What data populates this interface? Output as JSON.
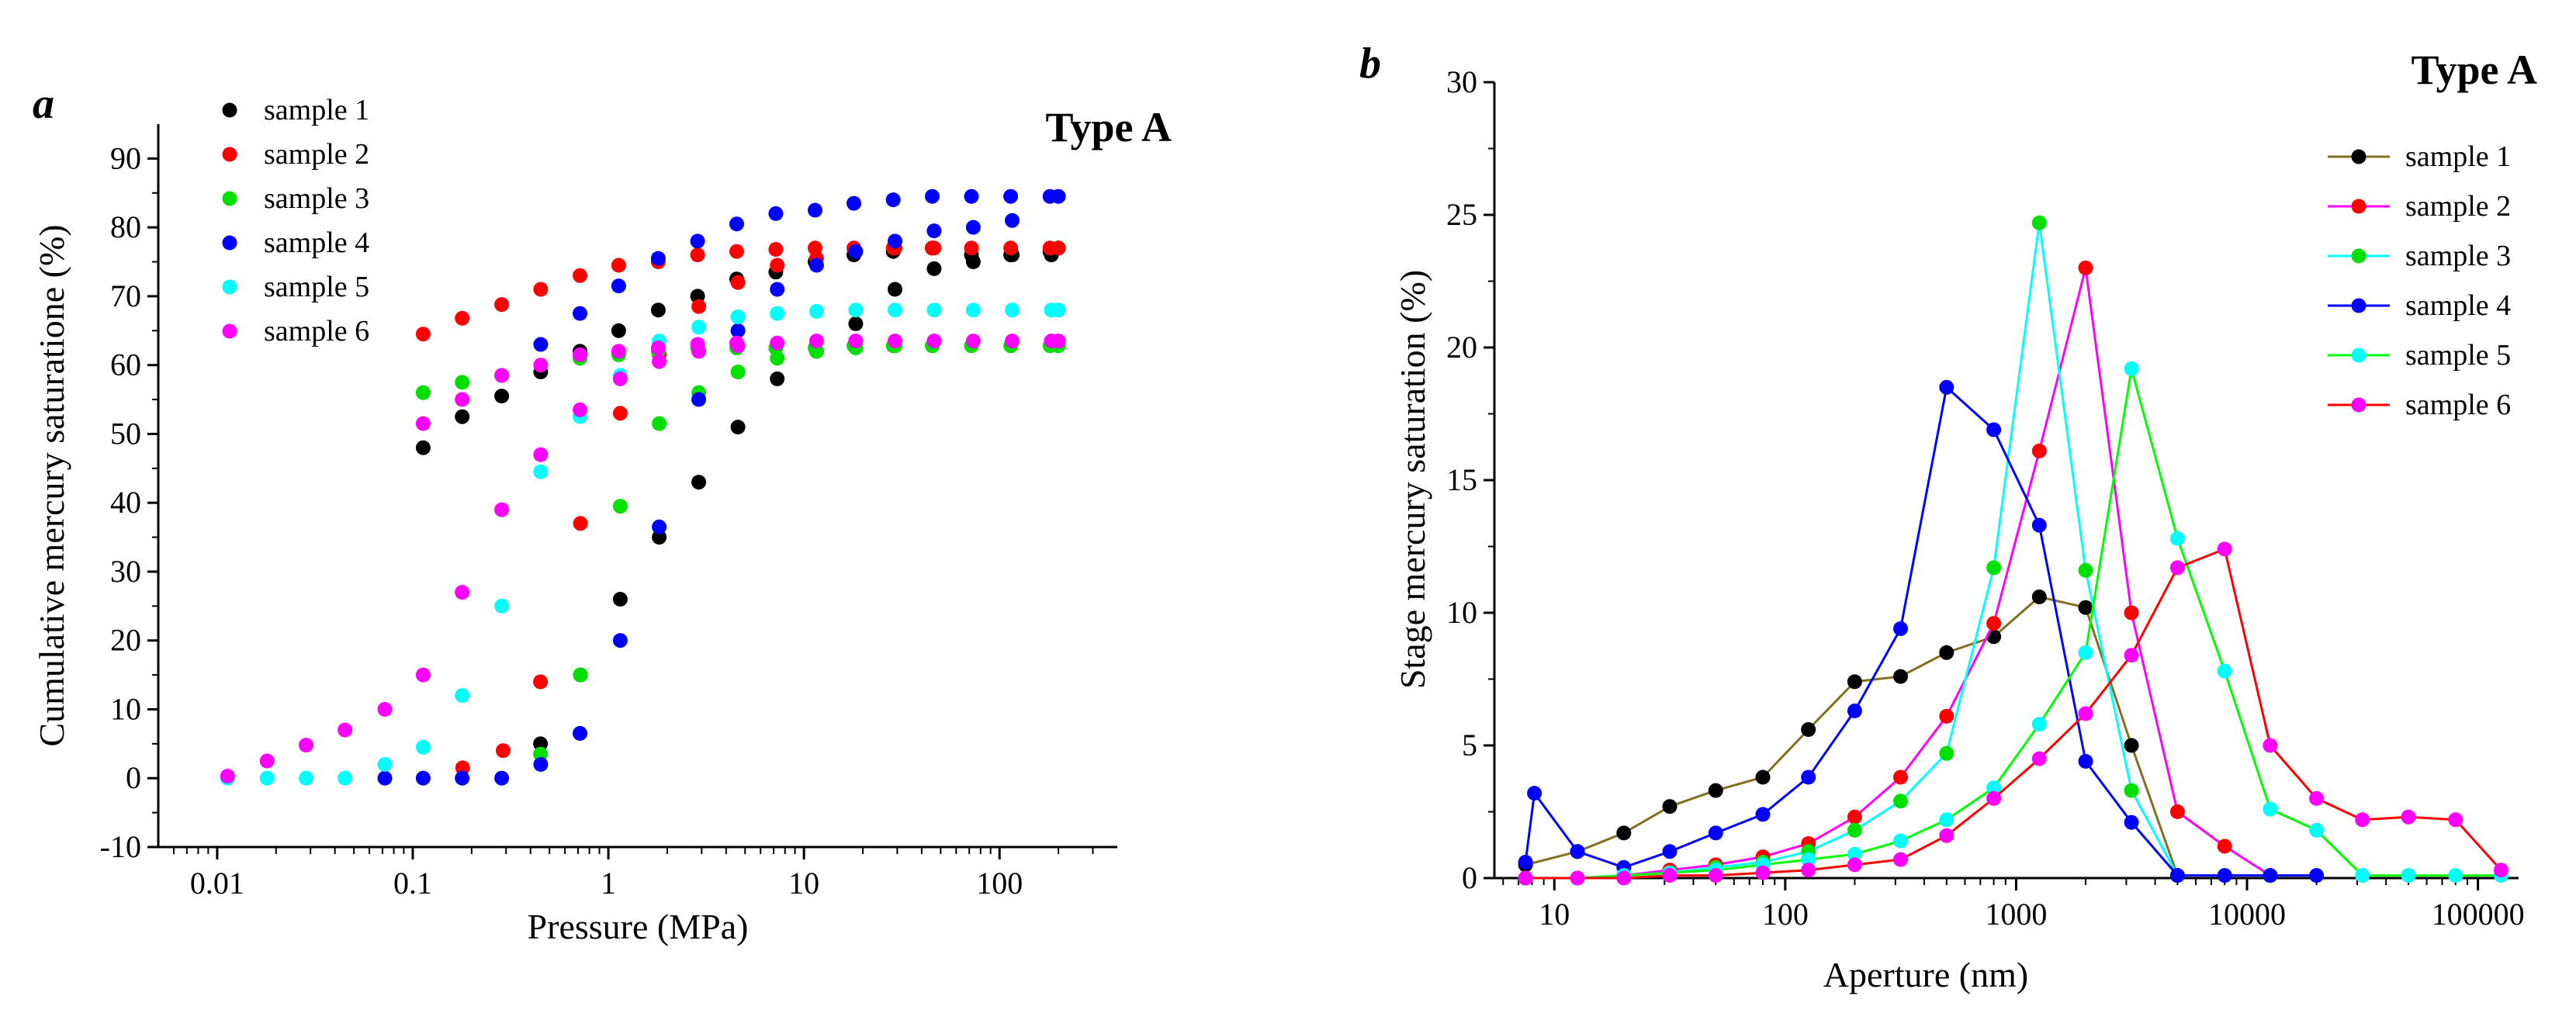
{
  "chart_data": [
    {
      "panel": "a",
      "type": "scatter",
      "annotation": "Type A",
      "xlabel": "Pressure (MPa)",
      "ylabel": "Cumulative  mercury saturatione (%)",
      "xscale": "log",
      "xlim": [
        0.005,
        400
      ],
      "ylim": [
        -10,
        95
      ],
      "xticks": [
        0.01,
        0.1,
        1,
        10,
        100
      ],
      "xtick_labels": [
        "0.01",
        "0.1",
        "1",
        "10",
        "100"
      ],
      "yticks": [
        -10,
        0,
        10,
        20,
        30,
        40,
        50,
        60,
        70,
        80,
        90
      ],
      "ytick_labels": [
        "-10",
        "0",
        "10",
        "20",
        "30",
        "40",
        "50",
        "60",
        "70",
        "80",
        "90"
      ],
      "legend_position": "top-left",
      "series": [
        {
          "name": "sample 1",
          "color": "#000000",
          "x": [
            0.45,
            0.72,
            1.15,
            1.82,
            2.9,
            4.6,
            7.3,
            11.6,
            18.4,
            29.2,
            46.3,
            73.4,
            116,
            184,
            0.113,
            0.179,
            0.285,
            0.451,
            0.716,
            1.13,
            1.8,
            2.86,
            4.53,
            7.18,
            11.4,
            18,
            28.6,
            45.3,
            71.8,
            114,
            181,
            200
          ],
          "y": [
            5,
            15,
            26,
            35,
            43,
            51,
            58,
            62,
            66,
            71,
            74,
            75,
            76,
            76,
            48,
            52.5,
            55.5,
            59,
            62,
            65,
            68,
            70,
            72.5,
            73.5,
            75,
            76,
            76.5,
            77,
            76,
            76,
            76.5,
            77
          ]
        },
        {
          "name": "sample 2",
          "color": "#ff0000",
          "x": [
            0.18,
            0.29,
            0.45,
            0.72,
            1.15,
            1.82,
            2.9,
            4.6,
            7.3,
            11.6,
            18.4,
            29.2,
            46.3,
            0.113,
            0.179,
            0.285,
            0.451,
            0.716,
            1.13,
            1.8,
            2.86,
            4.53,
            7.18,
            11.4,
            18,
            28.6,
            45.3,
            71.8,
            114,
            181,
            200
          ],
          "y": [
            1.5,
            4,
            14,
            37,
            53,
            61.5,
            68.5,
            72,
            74.5,
            75.5,
            76.5,
            77,
            77,
            64.5,
            66.8,
            68.8,
            71,
            73,
            74.5,
            75,
            76,
            76.5,
            76.8,
            77,
            77,
            77,
            77,
            77,
            77,
            77,
            77
          ]
        },
        {
          "name": "sample 3",
          "color": "#00e000",
          "x": [
            0.45,
            0.72,
            1.15,
            1.82,
            2.9,
            4.6,
            7.3,
            11.6,
            18.4,
            29.2,
            0.113,
            0.179,
            0.285,
            0.451,
            0.716,
            1.13,
            1.8,
            2.86,
            4.53,
            7.18,
            11.4,
            18,
            28.6,
            45.3,
            71.8,
            114,
            181,
            200
          ],
          "y": [
            3.5,
            15,
            39.5,
            51.5,
            56,
            59,
            61,
            62,
            62.5,
            62.8,
            56,
            57.5,
            58.5,
            60,
            61,
            61.5,
            62,
            62.5,
            62.5,
            62.5,
            62.5,
            62.8,
            62.8,
            62.8,
            62.8,
            62.8,
            62.8,
            62.8
          ]
        },
        {
          "name": "sample 4",
          "color": "#0000ff",
          "x": [
            0.072,
            0.113,
            0.179,
            0.285,
            0.451,
            0.716,
            1.15,
            1.82,
            2.9,
            4.6,
            7.3,
            11.6,
            18.4,
            29.2,
            46.3,
            73.4,
            116,
            0.451,
            0.716,
            1.13,
            1.8,
            2.86,
            4.53,
            7.18,
            11.4,
            18,
            28.6,
            45.3,
            71.8,
            114,
            181,
            200
          ],
          "y": [
            0,
            0,
            0,
            0,
            2,
            6.5,
            20,
            36.5,
            55,
            65,
            71,
            74.5,
            76.5,
            78,
            79.5,
            80,
            81,
            63,
            67.5,
            71.5,
            75.5,
            78,
            80.5,
            82,
            82.5,
            83.5,
            84,
            84.5,
            84.5,
            84.5,
            84.5,
            84.5
          ]
        },
        {
          "name": "sample 5",
          "color": "#00ffff",
          "x": [
            0.0113,
            0.018,
            0.0285,
            0.045,
            0.072,
            0.113,
            0.179,
            0.285,
            0.451,
            0.716,
            1.15,
            1.82,
            2.9,
            4.6,
            7.3,
            11.6,
            18.4,
            29.2,
            46.3,
            73.4,
            116,
            184,
            200
          ],
          "y": [
            0,
            0,
            0,
            0,
            2,
            4.5,
            12,
            25,
            44.5,
            52.5,
            58.5,
            63.5,
            65.5,
            67,
            67.5,
            67.8,
            68,
            68,
            68,
            68,
            68,
            68,
            68
          ]
        },
        {
          "name": "sample 6",
          "color": "#ff00ff",
          "x": [
            0.0113,
            0.018,
            0.0285,
            0.045,
            0.072,
            0.113,
            0.179,
            0.285,
            0.451,
            0.716,
            1.15,
            1.82,
            2.9,
            4.6,
            7.3,
            11.6,
            18.4,
            29.2,
            46.3,
            73.4,
            116,
            184,
            200,
            0.113,
            0.179,
            0.285,
            0.451,
            0.716,
            1.13,
            1.8,
            2.86,
            4.53
          ],
          "y": [
            0.3,
            2.5,
            4.8,
            7,
            10,
            15,
            27,
            39,
            47,
            53.5,
            58,
            60.5,
            62,
            62.8,
            63.2,
            63.5,
            63.5,
            63.5,
            63.5,
            63.5,
            63.5,
            63.5,
            63.5,
            51.5,
            55,
            58.5,
            60,
            61.5,
            62,
            62.5,
            63,
            63.2
          ]
        }
      ]
    },
    {
      "panel": "b",
      "type": "line",
      "annotation": "Type A",
      "xlabel": "Aperture (nm)",
      "ylabel": "Stage  mercury saturation (%)",
      "xscale": "log",
      "xlim": [
        5.5,
        150000
      ],
      "ylim": [
        0,
        30
      ],
      "xticks": [
        10,
        100,
        1000,
        10000,
        100000
      ],
      "xtick_labels": [
        "10",
        "100",
        "1000",
        "10000",
        "100000"
      ],
      "yticks": [
        0,
        5,
        10,
        15,
        20,
        25,
        30
      ],
      "ytick_labels": [
        "0",
        "5",
        "10",
        "15",
        "20",
        "25",
        "30"
      ],
      "legend_position": "top-right",
      "series": [
        {
          "name": "sample 1",
          "line_color": "#807020",
          "marker_color": "#000000",
          "x": [
            7.5,
            12.6,
            20,
            31.6,
            50,
            80,
            126,
            200,
            316,
            500,
            800,
            1260,
            2000,
            3160,
            5000
          ],
          "y": [
            0.5,
            1.0,
            1.7,
            2.7,
            3.3,
            3.8,
            5.6,
            7.4,
            7.6,
            8.5,
            9.1,
            10.6,
            10.2,
            5.0,
            0.1
          ]
        },
        {
          "name": "sample 2",
          "line_color": "#ff00ff",
          "marker_color": "#ff0000",
          "x": [
            7.5,
            12.6,
            20,
            31.6,
            50,
            80,
            126,
            200,
            316,
            500,
            800,
            1260,
            2000,
            3160,
            5000,
            8000,
            12600
          ],
          "y": [
            0.0,
            0.0,
            0.1,
            0.3,
            0.5,
            0.8,
            1.3,
            2.3,
            3.8,
            6.1,
            9.6,
            16.1,
            23.0,
            10.0,
            2.5,
            1.2,
            0.1
          ]
        },
        {
          "name": "sample 3",
          "line_color": "#00ffff",
          "marker_color": "#00e000",
          "x": [
            7.5,
            12.6,
            20,
            31.6,
            50,
            80,
            126,
            200,
            316,
            500,
            800,
            1260,
            2000,
            3160,
            5000
          ],
          "y": [
            0.0,
            0.0,
            0.1,
            0.2,
            0.4,
            0.6,
            1.0,
            1.8,
            2.9,
            4.7,
            11.7,
            24.7,
            11.6,
            3.3,
            0.1
          ]
        },
        {
          "name": "sample 4",
          "line_color": "#0000ff",
          "marker_color": "#0000ff",
          "x": [
            7.5,
            8.2,
            12.6,
            20,
            31.6,
            50,
            80,
            126,
            200,
            316,
            500,
            800,
            1260,
            2000,
            3160,
            5000,
            8000,
            12600,
            20000
          ],
          "y": [
            0.6,
            3.2,
            1.0,
            0.4,
            1.0,
            1.7,
            2.4,
            3.8,
            6.3,
            9.4,
            18.5,
            16.9,
            13.3,
            4.4,
            2.1,
            0.1,
            0.1,
            0.1,
            0.1
          ]
        },
        {
          "name": "sample 5",
          "line_color": "#00ff00",
          "marker_color": "#00ffff",
          "x": [
            7.5,
            12.6,
            20,
            31.6,
            50,
            80,
            126,
            200,
            316,
            500,
            800,
            1260,
            2000,
            3160,
            5000,
            8000,
            12600,
            20000,
            31600,
            50000,
            80000,
            126000
          ],
          "y": [
            0.0,
            0.0,
            0.1,
            0.2,
            0.3,
            0.5,
            0.7,
            0.9,
            1.4,
            2.2,
            3.4,
            5.8,
            8.5,
            19.2,
            12.8,
            7.8,
            2.6,
            1.8,
            0.1,
            0.1,
            0.1,
            0.1
          ]
        },
        {
          "name": "sample 6",
          "line_color": "#ff0000",
          "marker_color": "#ff00ff",
          "x": [
            7.5,
            12.6,
            20,
            31.6,
            50,
            80,
            126,
            200,
            316,
            500,
            800,
            1260,
            2000,
            3160,
            5000,
            8000,
            12600,
            20000,
            31600,
            50000,
            80000,
            126000
          ],
          "y": [
            0.0,
            0.0,
            0.0,
            0.1,
            0.1,
            0.2,
            0.3,
            0.5,
            0.7,
            1.6,
            3.0,
            4.5,
            6.2,
            8.4,
            11.7,
            12.4,
            5.0,
            3.0,
            2.2,
            2.3,
            2.2,
            0.3
          ]
        }
      ]
    }
  ]
}
